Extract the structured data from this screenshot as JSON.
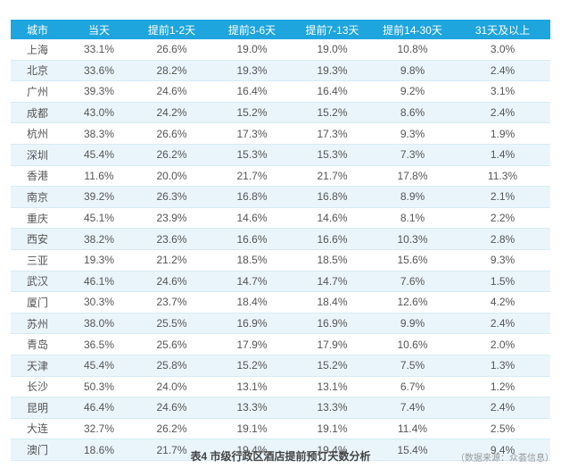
{
  "table": {
    "header": [
      "城市",
      "当天",
      "提前1-2天",
      "提前3-6天",
      "提前7-13天",
      "提前14-30天",
      "31天及以上"
    ],
    "rows": [
      [
        "上海",
        "33.1%",
        "26.6%",
        "19.0%",
        "19.0%",
        "10.8%",
        "3.0%"
      ],
      [
        "北京",
        "33.6%",
        "28.2%",
        "19.3%",
        "19.3%",
        "9.8%",
        "2.4%"
      ],
      [
        "广州",
        "39.3%",
        "24.6%",
        "16.4%",
        "16.4%",
        "9.2%",
        "3.1%"
      ],
      [
        "成都",
        "43.0%",
        "24.2%",
        "15.2%",
        "15.2%",
        "8.6%",
        "2.4%"
      ],
      [
        "杭州",
        "38.3%",
        "26.6%",
        "17.3%",
        "17.3%",
        "9.3%",
        "1.9%"
      ],
      [
        "深圳",
        "45.4%",
        "26.2%",
        "15.3%",
        "15.3%",
        "7.3%",
        "1.4%"
      ],
      [
        "香港",
        "11.6%",
        "20.0%",
        "21.7%",
        "21.7%",
        "17.8%",
        "11.3%"
      ],
      [
        "南京",
        "39.2%",
        "26.3%",
        "16.8%",
        "16.8%",
        "8.9%",
        "2.1%"
      ],
      [
        "重庆",
        "45.1%",
        "23.9%",
        "14.6%",
        "14.6%",
        "8.1%",
        "2.2%"
      ],
      [
        "西安",
        "38.2%",
        "23.6%",
        "16.6%",
        "16.6%",
        "10.3%",
        "2.8%"
      ],
      [
        "三亚",
        "19.3%",
        "21.2%",
        "18.5%",
        "18.5%",
        "15.6%",
        "9.3%"
      ],
      [
        "武汉",
        "46.1%",
        "24.6%",
        "14.7%",
        "14.7%",
        "7.6%",
        "1.5%"
      ],
      [
        "厦门",
        "30.3%",
        "23.7%",
        "18.4%",
        "18.4%",
        "12.6%",
        "4.2%"
      ],
      [
        "苏州",
        "38.0%",
        "25.5%",
        "16.9%",
        "16.9%",
        "9.9%",
        "2.4%"
      ],
      [
        "青岛",
        "36.5%",
        "25.6%",
        "17.9%",
        "17.9%",
        "10.6%",
        "2.0%"
      ],
      [
        "天津",
        "45.4%",
        "25.8%",
        "15.2%",
        "15.2%",
        "7.5%",
        "1.3%"
      ],
      [
        "长沙",
        "50.3%",
        "24.0%",
        "13.1%",
        "13.1%",
        "6.7%",
        "1.2%"
      ],
      [
        "昆明",
        "46.4%",
        "24.6%",
        "13.3%",
        "13.3%",
        "7.4%",
        "2.4%"
      ],
      [
        "大连",
        "32.7%",
        "26.2%",
        "19.1%",
        "19.1%",
        "11.4%",
        "2.5%"
      ],
      [
        "澳门",
        "18.6%",
        "21.7%",
        "19.4%",
        "19.4%",
        "15.4%",
        "9.4%"
      ]
    ]
  },
  "caption": "表4 市级行政区酒店提前预订天数分析",
  "source": "（数据来源：众荟信息）"
}
